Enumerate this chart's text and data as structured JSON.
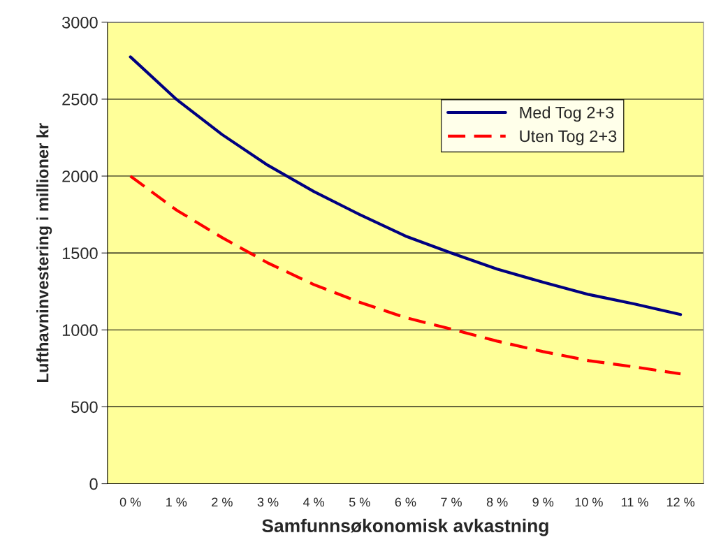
{
  "chart_data": {
    "type": "line",
    "xlabel": "Samfunnsøkonomisk avkastning",
    "ylabel": "Lufthavninvestering i millioner kr",
    "categories": [
      "0 %",
      "1 %",
      "2 %",
      "3 %",
      "4 %",
      "5 %",
      "6 %",
      "7 %",
      "8 %",
      "9 %",
      "10 %",
      "11 %",
      "12 %"
    ],
    "series": [
      {
        "name": "Med Tog 2+3",
        "color": "#000080",
        "line_style": "solid",
        "values": [
          2775,
          2500,
          2270,
          2070,
          1900,
          1750,
          1610,
          1500,
          1395,
          1310,
          1230,
          1168,
          1100
        ]
      },
      {
        "name": "Uten Tog 2+3",
        "color": "#ff0000",
        "line_style": "dashed",
        "values": [
          2000,
          1780,
          1600,
          1435,
          1295,
          1180,
          1080,
          1005,
          927,
          859,
          800,
          759,
          714
        ]
      }
    ],
    "ylim": [
      0,
      3000
    ],
    "yticks": [
      0,
      500,
      1000,
      1500,
      2000,
      2500,
      3000
    ],
    "grid": "y",
    "legend": "top right",
    "marker": "none"
  }
}
